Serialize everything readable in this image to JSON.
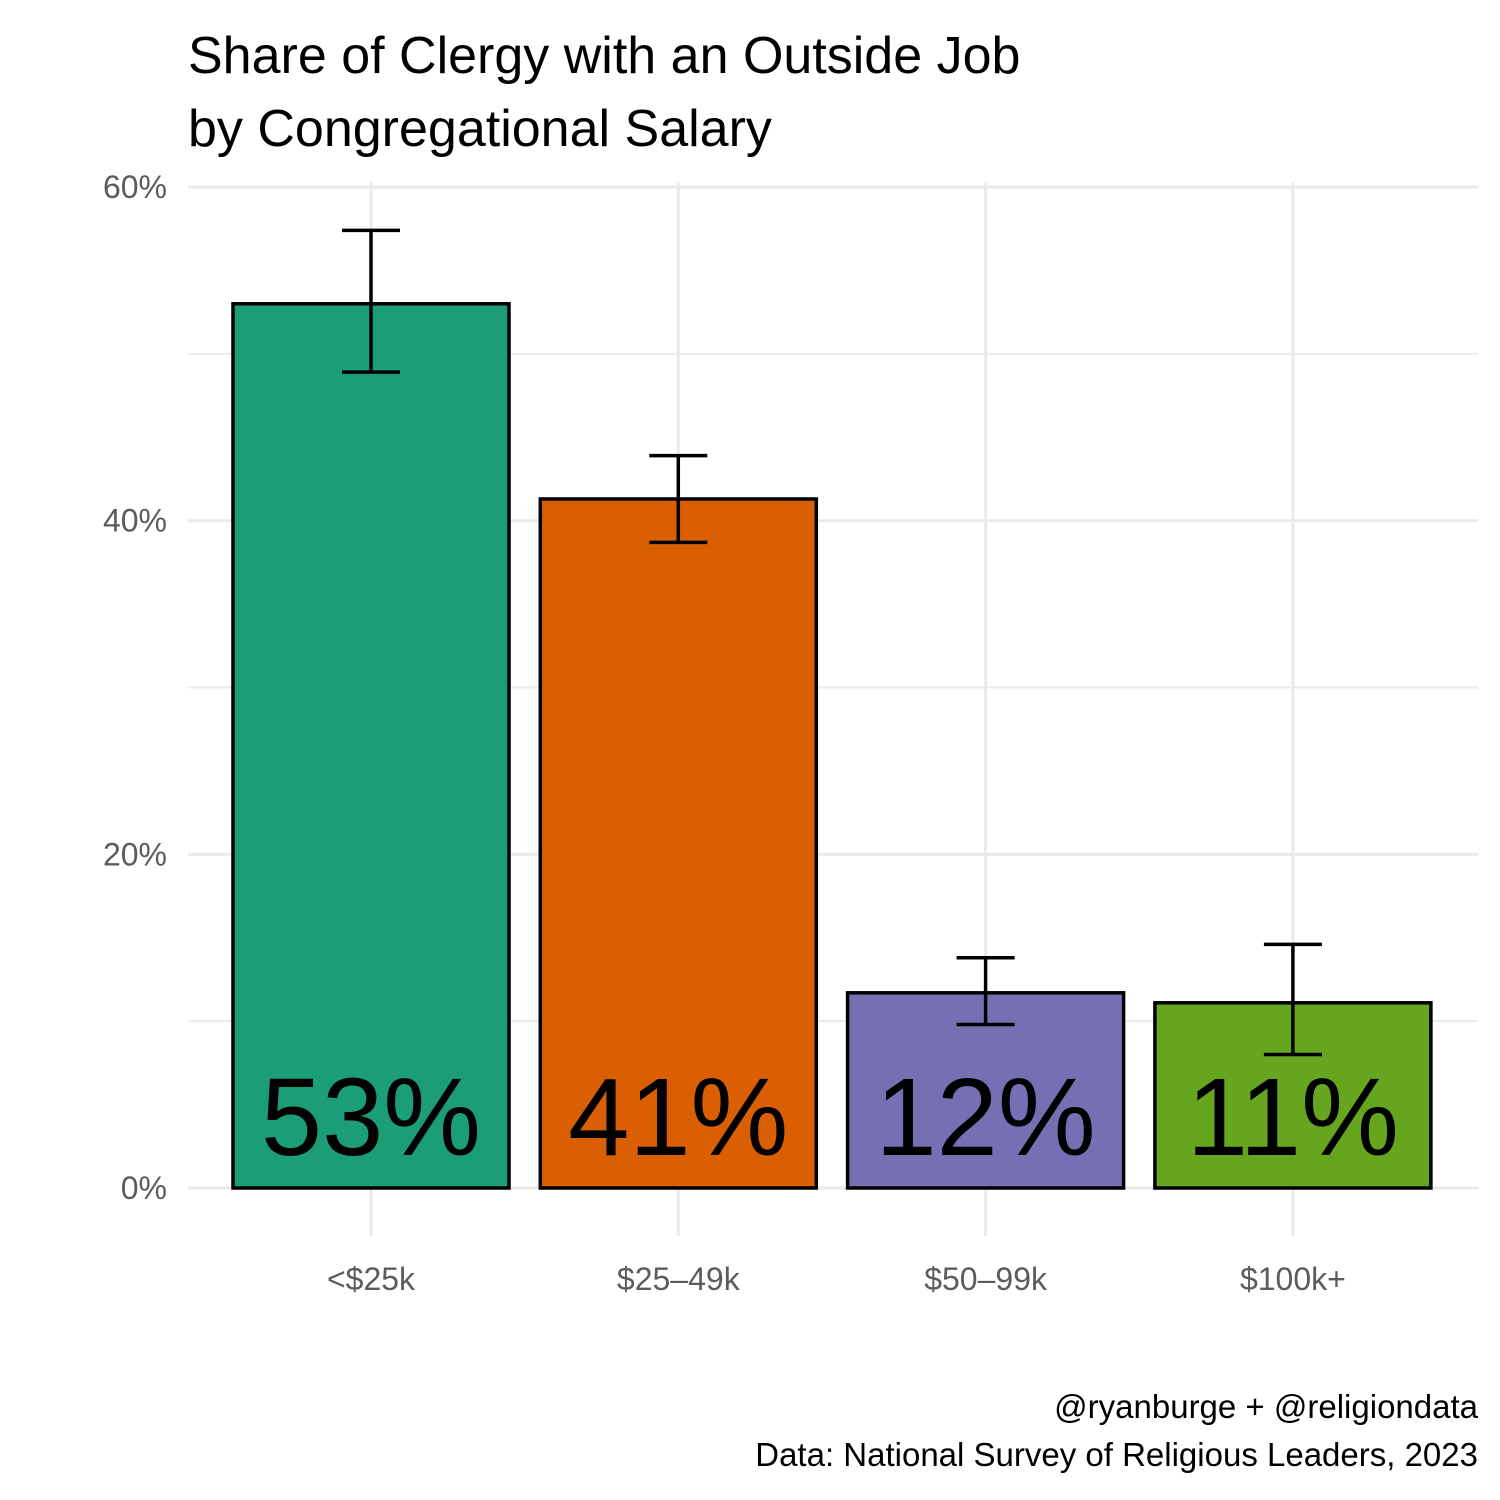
{
  "chart_data": {
    "type": "bar",
    "title": [
      "Share of Clergy with an Outside Job",
      "by Congregational Salary"
    ],
    "categories": [
      "<$25k",
      "$25–49k",
      "$50–99k",
      "$100k+"
    ],
    "values": [
      0.53,
      0.413,
      0.117,
      0.111
    ],
    "value_labels": [
      "53%",
      "41%",
      "12%",
      "11%"
    ],
    "error_low": [
      0.489,
      0.387,
      0.098,
      0.08
    ],
    "error_high": [
      0.574,
      0.439,
      0.138,
      0.146
    ],
    "colors": [
      "#1b9e77",
      "#d95f02",
      "#7570b3",
      "#66a61e"
    ],
    "ylim": [
      0,
      0.6
    ],
    "y_ticks": [
      0,
      0.2,
      0.4,
      0.6
    ],
    "y_tick_labels": [
      "0%",
      "20%",
      "40%",
      "60%"
    ],
    "y_minor_ticks": [
      0.1,
      0.3,
      0.5
    ],
    "grid": true,
    "legend": "none"
  },
  "caption": [
    "@ryanburge + @religiondata",
    "Data: National Survey of Religious Leaders, 2023"
  ]
}
